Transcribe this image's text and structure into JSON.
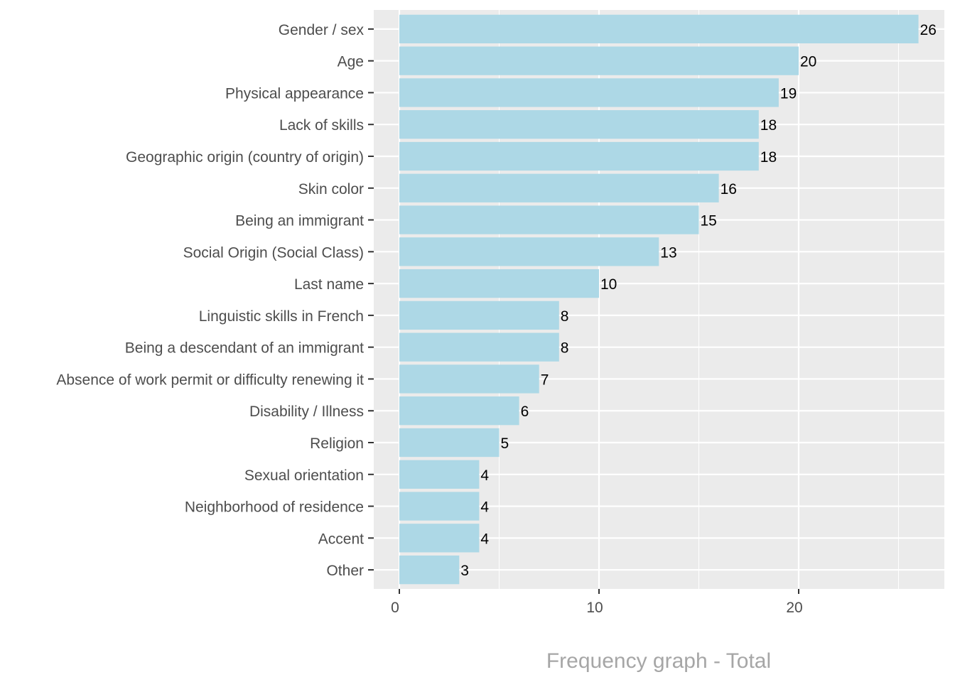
{
  "chart_data": {
    "type": "bar",
    "orientation": "horizontal",
    "title": "Frequency graph - Total",
    "xlabel": "",
    "ylabel": "",
    "categories": [
      "Gender / sex",
      "Age",
      "Physical appearance",
      "Lack of skills",
      "Geographic origin (country of origin)",
      "Skin color",
      "Being an immigrant",
      "Social Origin (Social Class)",
      "Last name",
      "Linguistic skills in French",
      "Being a descendant of an immigrant",
      "Absence of work permit or difficulty renewing it",
      "Disability / Illness",
      "Religion",
      "Sexual orientation",
      "Neighborhood of residence",
      "Accent",
      "Other"
    ],
    "values": [
      26,
      20,
      19,
      18,
      18,
      16,
      15,
      13,
      10,
      8,
      8,
      7,
      6,
      5,
      4,
      4,
      4,
      3
    ],
    "xlim": [
      -1.3,
      27.3
    ],
    "xticks": [
      0,
      10,
      20
    ],
    "xtick_labels": [
      "0",
      "10",
      "20"
    ],
    "minor_gridlines": [
      5,
      15,
      25
    ],
    "grid": true,
    "legend": "none",
    "colors": {
      "bar": "#add8e6",
      "panel": "#ebebeb",
      "grid": "#ffffff",
      "title": "#a6a6a6"
    }
  }
}
